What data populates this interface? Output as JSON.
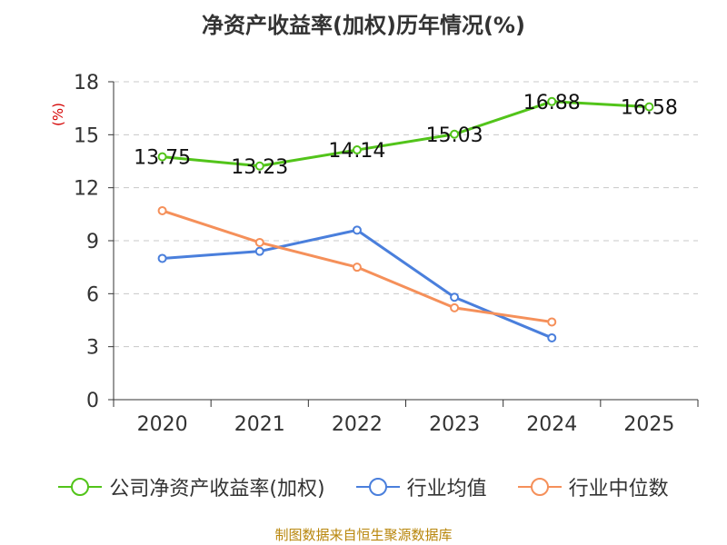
{
  "chart_data": {
    "type": "line",
    "title": "净资产收益率(加权)历年情况(%)",
    "ylabel": "(%)",
    "xlabel": "",
    "categories": [
      "2020",
      "2021",
      "2022",
      "2023",
      "2024",
      "2025"
    ],
    "ylim": [
      0,
      18
    ],
    "yticks": [
      0,
      3,
      6,
      9,
      12,
      15,
      18
    ],
    "grid": true,
    "legend_position": "bottom",
    "series": [
      {
        "name": "公司净资产收益率(加权)",
        "color": "#52c41a",
        "values": [
          13.75,
          13.23,
          14.14,
          15.03,
          16.88,
          16.58
        ],
        "labels": [
          "13.75",
          "13.23",
          "14.14",
          "15.03",
          "16.88",
          "16.58"
        ]
      },
      {
        "name": "行业均值",
        "color": "#4a7fdc",
        "values": [
          8.0,
          8.4,
          9.6,
          5.8,
          3.5,
          null
        ]
      },
      {
        "name": "行业中位数",
        "color": "#f5905a",
        "values": [
          10.7,
          8.9,
          7.5,
          5.2,
          4.4,
          null
        ]
      }
    ]
  },
  "source": "制图数据来自恒生聚源数据库"
}
